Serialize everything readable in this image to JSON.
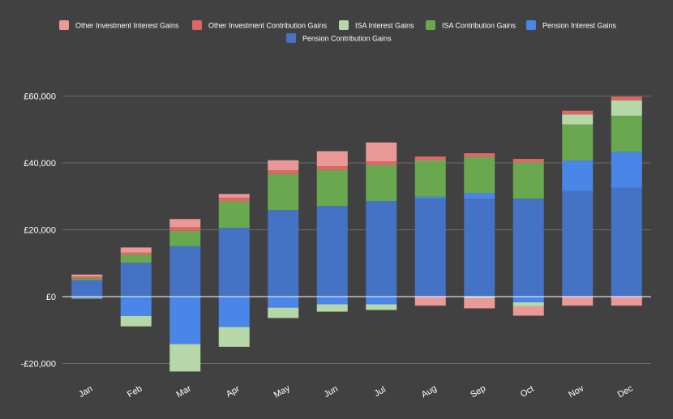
{
  "chart_data": {
    "type": "bar",
    "stacked": true,
    "title": "",
    "xlabel": "",
    "ylabel": "",
    "categories": [
      "Jan",
      "Feb",
      "Mar",
      "Apr",
      "May",
      "Jun",
      "Jul",
      "Aug",
      "Sep",
      "Oct",
      "Nov",
      "Dec"
    ],
    "series": [
      {
        "name": "Pension Contribution Gains",
        "color": "#4472c4",
        "values": [
          4900,
          10100,
          15100,
          20600,
          25900,
          27100,
          28600,
          29300,
          29300,
          29300,
          31600,
          32600
        ]
      },
      {
        "name": "Pension Interest Gains",
        "color": "#4a86e8",
        "values": [
          -400,
          -5800,
          -14200,
          -9100,
          -3300,
          -2300,
          -2300,
          600,
          1700,
          -1700,
          9100,
          10700
        ]
      },
      {
        "name": "ISA Contribution Gains",
        "color": "#6aa84f",
        "values": [
          600,
          2500,
          4600,
          7900,
          10800,
          10800,
          10800,
          10800,
          10800,
          10800,
          10800,
          10800
        ]
      },
      {
        "name": "ISA Interest Gains",
        "color": "#b6d7a8",
        "values": [
          -200,
          -3100,
          -8200,
          -5900,
          -3100,
          -2200,
          -1700,
          100,
          -500,
          -1200,
          3000,
          4600
        ]
      },
      {
        "name": "Other Investment Contribution Gains",
        "color": "#e06666",
        "values": [
          500,
          600,
          1100,
          1100,
          1100,
          1100,
          1100,
          1100,
          1100,
          1100,
          1100,
          1100
        ]
      },
      {
        "name": "Other Investment Interest Gains",
        "color": "#ea9999",
        "values": [
          600,
          1500,
          2400,
          1100,
          3000,
          4500,
          5600,
          -2700,
          -3000,
          -2800,
          -2700,
          -2700
        ]
      }
    ],
    "legend_order": [
      "Other Investment Interest Gains",
      "Other Investment Contribution Gains",
      "ISA Interest Gains",
      "ISA Contribution Gains",
      "Pension Interest Gains",
      "Pension Contribution Gains"
    ],
    "yticks": [
      -20000,
      0,
      20000,
      40000,
      60000
    ],
    "ytick_labels": [
      "-£20,000",
      "£0",
      "£20,000",
      "£40,000",
      "£60,000"
    ],
    "ylim": [
      -22000,
      63000
    ],
    "grid": true,
    "legend_position": "top"
  }
}
